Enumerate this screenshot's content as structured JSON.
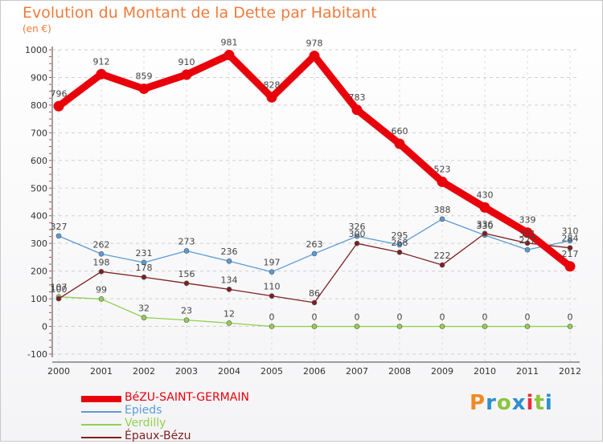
{
  "title": "Evolution du Montant de la Dette par Habitant",
  "unit_label": "(en €)",
  "logo": {
    "text": "Proxiti",
    "colors": [
      "#f08a24",
      "#2c8fd1",
      "#8cc43f",
      "#2c8fd1",
      "#e8303a",
      "#8cc43f",
      "#2c8fd1"
    ]
  },
  "chart_data": {
    "type": "line",
    "title": "Evolution du Montant de la Dette par Habitant",
    "ylabel": "(en €)",
    "xlabel": "",
    "x": [
      "2000",
      "2001",
      "2002",
      "2003",
      "2004",
      "2005",
      "2006",
      "2007",
      "2008",
      "2009",
      "2010",
      "2011",
      "2012"
    ],
    "ylim": [
      -100,
      1000
    ],
    "yticks": [
      -100,
      0,
      100,
      200,
      300,
      400,
      500,
      600,
      700,
      800,
      900,
      1000
    ],
    "grid": "horizontal-dashed",
    "legend_position": "bottom-left",
    "series": [
      {
        "name": "BéZU-SAINT-GERMAIN",
        "color": "#e8000b",
        "values": [
          796,
          912,
          859,
          910,
          981,
          828,
          978,
          783,
          660,
          523,
          430,
          339,
          217
        ]
      },
      {
        "name": "Epieds",
        "color": "#5b9bd5",
        "values": [
          327,
          262,
          231,
          273,
          236,
          197,
          263,
          326,
          295,
          388,
          330,
          277,
          310
        ]
      },
      {
        "name": "Verdilly",
        "color": "#92d050",
        "values": [
          107,
          99,
          32,
          23,
          12,
          0,
          0,
          0,
          0,
          0,
          0,
          0,
          0
        ]
      },
      {
        "name": "Épaux-Bézu",
        "color": "#7f1f1f",
        "values": [
          100,
          198,
          178,
          156,
          134,
          110,
          86,
          300,
          268,
          222,
          336,
          301,
          284
        ]
      }
    ]
  }
}
